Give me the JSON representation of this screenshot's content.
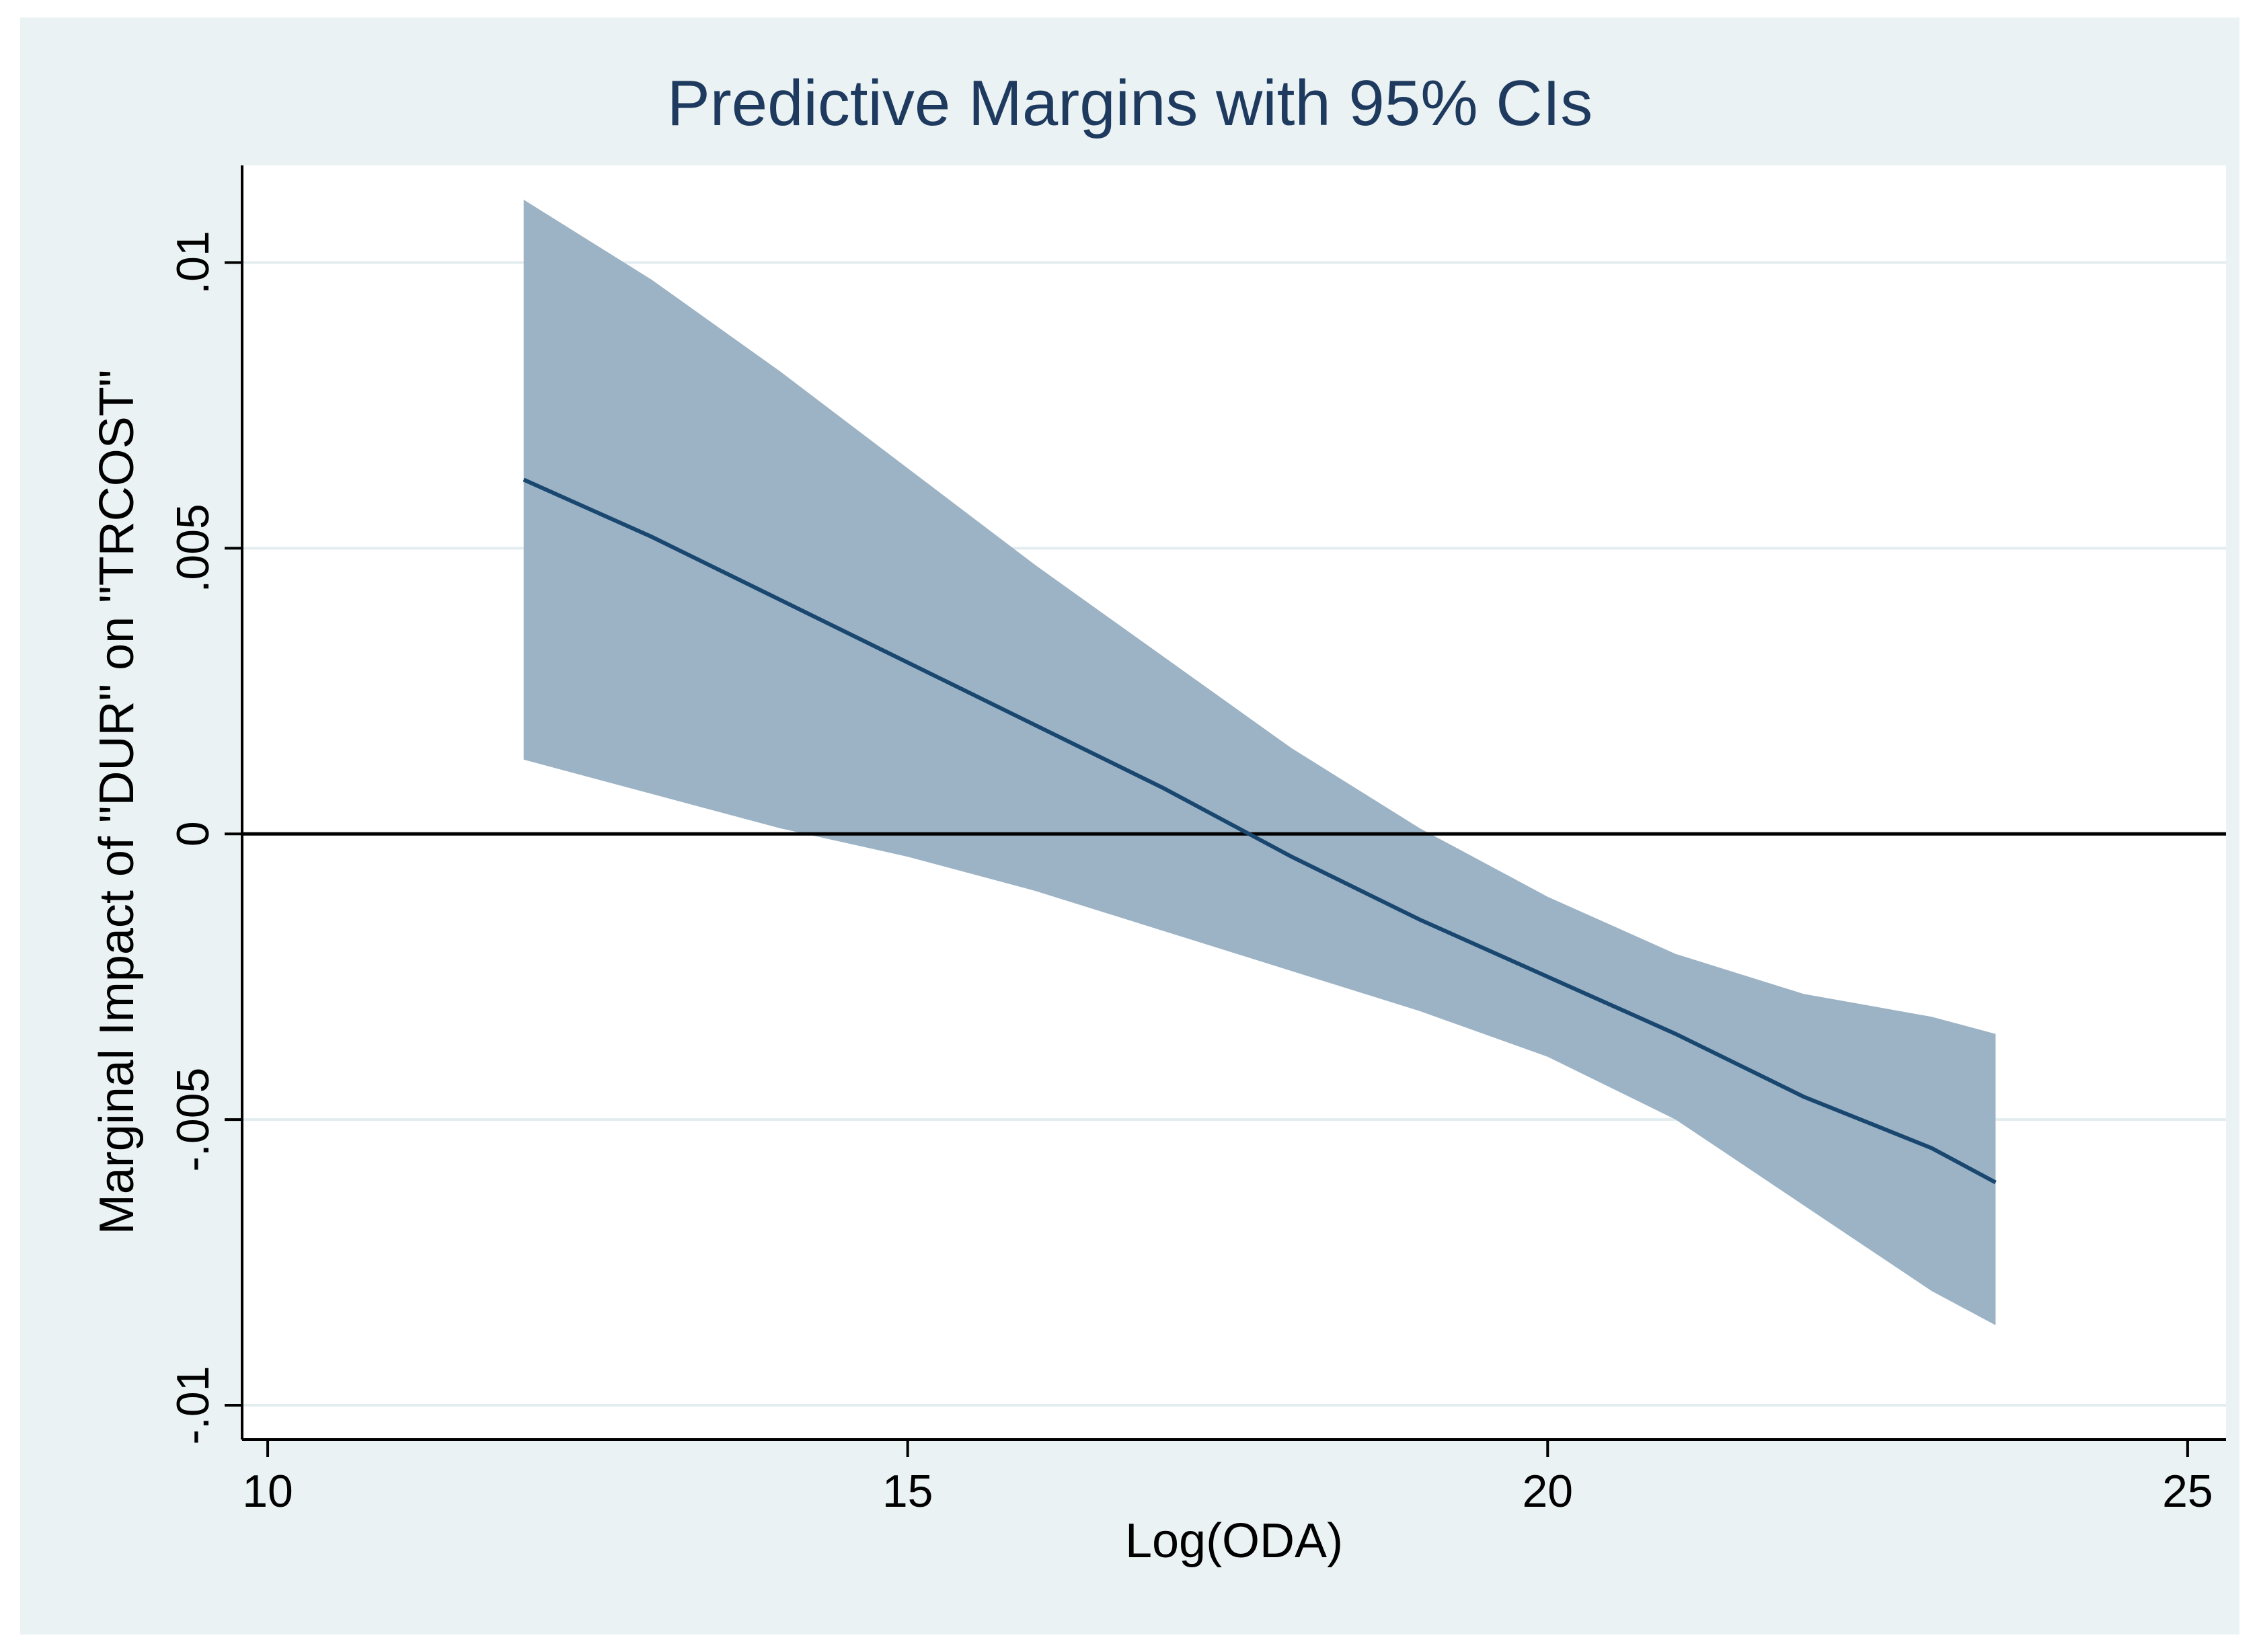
{
  "chart_data": {
    "type": "line",
    "title": "Predictive Margins with 95% CIs",
    "xlabel": "Log(ODA)",
    "ylabel": "Marginal Impact of \"DUR\" on \"TRCOST\"",
    "xlim": [
      9.8,
      25.3
    ],
    "ylim": [
      -0.0106,
      0.0117
    ],
    "x_ticks": [
      10,
      15,
      20,
      25
    ],
    "x_tick_labels": [
      "10",
      "15",
      "20",
      "25"
    ],
    "y_ticks": [
      -0.01,
      -0.005,
      0,
      0.005,
      0.01
    ],
    "y_tick_labels": [
      "-.01",
      "-.005",
      "0",
      ".005",
      ".01"
    ],
    "reference_line": 0,
    "grid": true,
    "series": [
      {
        "name": "margin",
        "x": [
          12.0,
          13.0,
          14.0,
          15.0,
          16.0,
          17.0,
          18.0,
          19.0,
          20.0,
          21.0,
          22.0,
          23.0,
          23.5
        ],
        "y": [
          0.0062,
          0.0052,
          0.0041,
          0.003,
          0.0019,
          0.0008,
          -0.0004,
          -0.0015,
          -0.0025,
          -0.0035,
          -0.0046,
          -0.0055,
          -0.0061
        ],
        "lower": [
          0.0013,
          0.0007,
          0.0001,
          -0.0004,
          -0.001,
          -0.0017,
          -0.0024,
          -0.0031,
          -0.0039,
          -0.005,
          -0.0065,
          -0.008,
          -0.0086
        ],
        "upper": [
          0.0111,
          0.0097,
          0.0081,
          0.0064,
          0.0047,
          0.0031,
          0.0015,
          0.0001,
          -0.0011,
          -0.0021,
          -0.0028,
          -0.0032,
          -0.0035
        ]
      }
    ],
    "colors": {
      "background": "#eaf2f3",
      "plot_background": "#ffffff",
      "band": "#9cb3c5",
      "line": "#1a476f",
      "grid": "#e3edef",
      "title": "#1f3a5f"
    }
  }
}
